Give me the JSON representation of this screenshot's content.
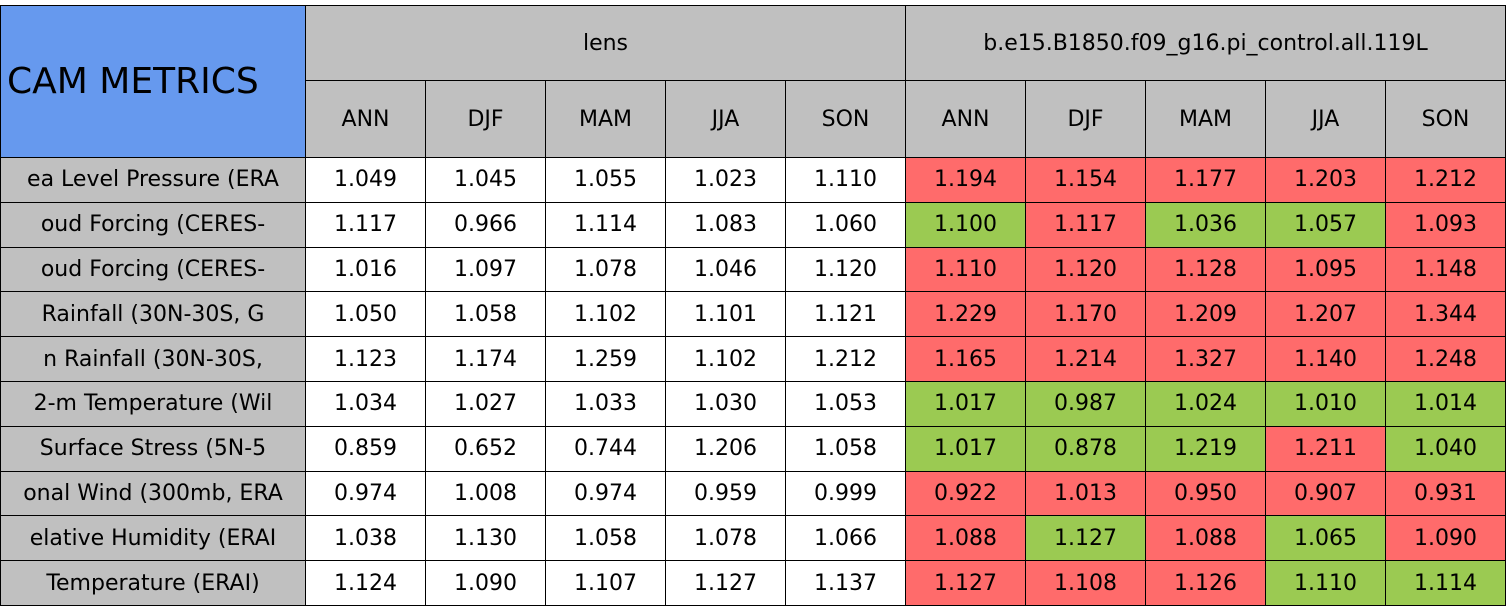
{
  "title": "CAM METRICS",
  "groups": [
    {
      "name": "lens",
      "columns": [
        "ANN",
        "DJF",
        "MAM",
        "JJA",
        "SON"
      ]
    },
    {
      "name": "b.e15.B1850.f09_g16.pi_control.all.119L",
      "columns": [
        "ANN",
        "DJF",
        "MAM",
        "JJA",
        "SON"
      ]
    }
  ],
  "rows": [
    {
      "label": "ea Level Pressure (ERA",
      "values": [
        "1.049",
        "1.045",
        "1.055",
        "1.023",
        "1.110",
        "1.194",
        "1.154",
        "1.177",
        "1.203",
        "1.212"
      ],
      "colors": [
        "#ffffff",
        "#ffffff",
        "#ffffff",
        "#ffffff",
        "#ffffff",
        "#ff6b6b",
        "#ff6b6b",
        "#ff6b6b",
        "#ff6b6b",
        "#ff6b6b"
      ]
    },
    {
      "label": "oud Forcing (CERES-",
      "values": [
        "1.117",
        "0.966",
        "1.114",
        "1.083",
        "1.060",
        "1.100",
        "1.117",
        "1.036",
        "1.057",
        "1.093"
      ],
      "colors": [
        "#ffffff",
        "#ffffff",
        "#ffffff",
        "#ffffff",
        "#ffffff",
        "#9bca52",
        "#ff6b6b",
        "#9bca52",
        "#9bca52",
        "#ff6b6b"
      ]
    },
    {
      "label": "oud Forcing (CERES-",
      "values": [
        "1.016",
        "1.097",
        "1.078",
        "1.046",
        "1.120",
        "1.110",
        "1.120",
        "1.128",
        "1.095",
        "1.148"
      ],
      "colors": [
        "#ffffff",
        "#ffffff",
        "#ffffff",
        "#ffffff",
        "#ffffff",
        "#ff6b6b",
        "#ff6b6b",
        "#ff6b6b",
        "#ff6b6b",
        "#ff6b6b"
      ]
    },
    {
      "label": "Rainfall (30N-30S, G",
      "values": [
        "1.050",
        "1.058",
        "1.102",
        "1.101",
        "1.121",
        "1.229",
        "1.170",
        "1.209",
        "1.207",
        "1.344"
      ],
      "colors": [
        "#ffffff",
        "#ffffff",
        "#ffffff",
        "#ffffff",
        "#ffffff",
        "#ff6b6b",
        "#ff6b6b",
        "#ff6b6b",
        "#ff6b6b",
        "#ff6b6b"
      ]
    },
    {
      "label": "n Rainfall (30N-30S,",
      "values": [
        "1.123",
        "1.174",
        "1.259",
        "1.102",
        "1.212",
        "1.165",
        "1.214",
        "1.327",
        "1.140",
        "1.248"
      ],
      "colors": [
        "#ffffff",
        "#ffffff",
        "#ffffff",
        "#ffffff",
        "#ffffff",
        "#ff6b6b",
        "#ff6b6b",
        "#ff6b6b",
        "#ff6b6b",
        "#ff6b6b"
      ]
    },
    {
      "label": "2-m Temperature (Wil",
      "values": [
        "1.034",
        "1.027",
        "1.033",
        "1.030",
        "1.053",
        "1.017",
        "0.987",
        "1.024",
        "1.010",
        "1.014"
      ],
      "colors": [
        "#ffffff",
        "#ffffff",
        "#ffffff",
        "#ffffff",
        "#ffffff",
        "#9bca52",
        "#9bca52",
        "#9bca52",
        "#9bca52",
        "#9bca52"
      ]
    },
    {
      "label": "Surface Stress (5N-5",
      "values": [
        "0.859",
        "0.652",
        "0.744",
        "1.206",
        "1.058",
        "1.017",
        "0.878",
        "1.219",
        "1.211",
        "1.040"
      ],
      "colors": [
        "#ffffff",
        "#ffffff",
        "#ffffff",
        "#ffffff",
        "#ffffff",
        "#9bca52",
        "#9bca52",
        "#9bca52",
        "#ff6b6b",
        "#9bca52"
      ]
    },
    {
      "label": "onal Wind (300mb, ERA",
      "values": [
        "0.974",
        "1.008",
        "0.974",
        "0.959",
        "0.999",
        "0.922",
        "1.013",
        "0.950",
        "0.907",
        "0.931"
      ],
      "colors": [
        "#ffffff",
        "#ffffff",
        "#ffffff",
        "#ffffff",
        "#ffffff",
        "#ff6b6b",
        "#ff6b6b",
        "#ff6b6b",
        "#ff6b6b",
        "#ff6b6b"
      ]
    },
    {
      "label": "elative Humidity (ERAI",
      "values": [
        "1.038",
        "1.130",
        "1.058",
        "1.078",
        "1.066",
        "1.088",
        "1.127",
        "1.088",
        "1.065",
        "1.090"
      ],
      "colors": [
        "#ffffff",
        "#ffffff",
        "#ffffff",
        "#ffffff",
        "#ffffff",
        "#ff6b6b",
        "#9bca52",
        "#ff6b6b",
        "#9bca52",
        "#ff6b6b"
      ]
    },
    {
      "label": "Temperature (ERAI)",
      "values": [
        "1.124",
        "1.090",
        "1.107",
        "1.127",
        "1.137",
        "1.127",
        "1.108",
        "1.126",
        "1.110",
        "1.114"
      ],
      "colors": [
        "#ffffff",
        "#ffffff",
        "#ffffff",
        "#ffffff",
        "#ffffff",
        "#ff6b6b",
        "#ff6b6b",
        "#ff6b6b",
        "#9bca52",
        "#9bca52"
      ]
    }
  ]
}
